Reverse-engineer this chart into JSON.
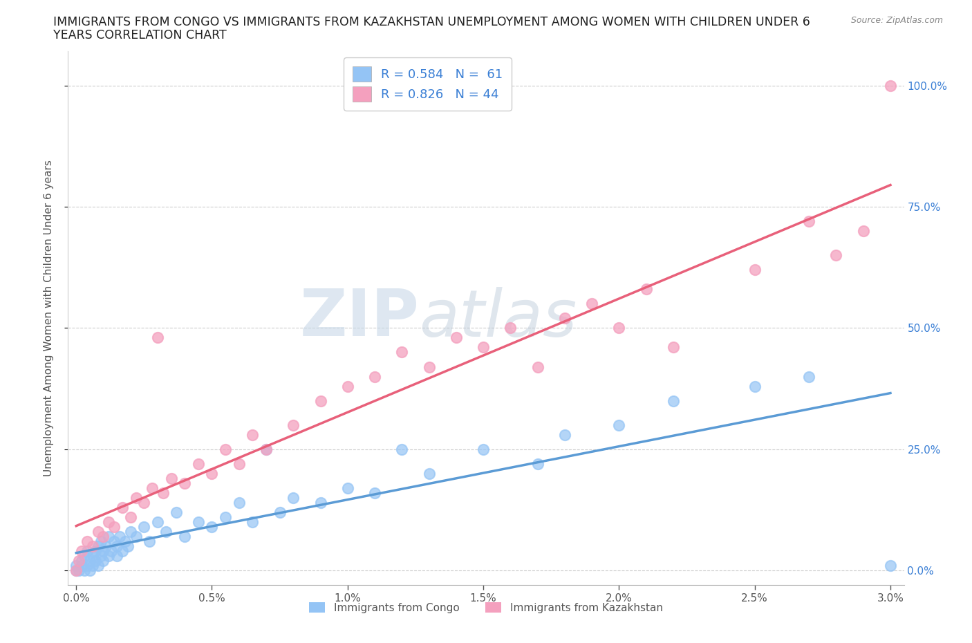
{
  "title_line1": "IMMIGRANTS FROM CONGO VS IMMIGRANTS FROM KAZAKHSTAN UNEMPLOYMENT AMONG WOMEN WITH CHILDREN UNDER 6",
  "title_line2": "YEARS CORRELATION CHART",
  "source": "Source: ZipAtlas.com",
  "ylabel": "Unemployment Among Women with Children Under 6 years",
  "legend_entry1": "R = 0.584   N =  61",
  "legend_entry2": "R = 0.826   N = 44",
  "legend_label1": "Immigrants from Congo",
  "legend_label2": "Immigrants from Kazakhstan",
  "color_congo": "#94c4f5",
  "color_kazakhstan": "#f4a0be",
  "trendline_congo_color": "#5b9bd5",
  "trendline_kazakhstan_color": "#e8607a",
  "watermark_zip": "ZIP",
  "watermark_atlas": "atlas",
  "xlim": [
    0,
    3.0
  ],
  "ylim": [
    0,
    105
  ],
  "x_ticks": [
    0.0,
    0.5,
    1.0,
    1.5,
    2.0,
    2.5,
    3.0
  ],
  "y_ticks": [
    0.0,
    25.0,
    50.0,
    75.0,
    100.0
  ],
  "congo_x": [
    0.0,
    0.0,
    0.01,
    0.02,
    0.02,
    0.03,
    0.03,
    0.04,
    0.04,
    0.05,
    0.05,
    0.06,
    0.06,
    0.07,
    0.07,
    0.08,
    0.08,
    0.09,
    0.09,
    0.1,
    0.1,
    0.11,
    0.12,
    0.12,
    0.13,
    0.14,
    0.15,
    0.15,
    0.16,
    0.17,
    0.18,
    0.19,
    0.2,
    0.22,
    0.25,
    0.27,
    0.3,
    0.33,
    0.37,
    0.4,
    0.45,
    0.5,
    0.55,
    0.6,
    0.65,
    0.7,
    0.75,
    0.8,
    0.9,
    1.0,
    1.1,
    1.2,
    1.3,
    1.5,
    1.7,
    1.8,
    2.0,
    2.2,
    2.5,
    2.7,
    3.0
  ],
  "congo_y": [
    0.0,
    1.0,
    0.0,
    2.0,
    1.0,
    0.0,
    3.0,
    1.0,
    4.0,
    2.0,
    0.0,
    3.0,
    1.0,
    4.0,
    2.0,
    5.0,
    1.0,
    3.0,
    6.0,
    4.0,
    2.0,
    5.0,
    3.0,
    7.0,
    4.0,
    6.0,
    5.0,
    3.0,
    7.0,
    4.0,
    6.0,
    5.0,
    8.0,
    7.0,
    9.0,
    6.0,
    10.0,
    8.0,
    12.0,
    7.0,
    10.0,
    9.0,
    11.0,
    14.0,
    10.0,
    25.0,
    12.0,
    15.0,
    14.0,
    17.0,
    16.0,
    25.0,
    20.0,
    25.0,
    22.0,
    28.0,
    30.0,
    35.0,
    38.0,
    40.0,
    1.0
  ],
  "kaz_x": [
    0.0,
    0.01,
    0.02,
    0.04,
    0.06,
    0.08,
    0.1,
    0.12,
    0.14,
    0.17,
    0.2,
    0.22,
    0.25,
    0.28,
    0.32,
    0.35,
    0.4,
    0.45,
    0.5,
    0.55,
    0.6,
    0.65,
    0.7,
    0.8,
    0.9,
    1.0,
    1.1,
    1.2,
    1.3,
    1.4,
    1.5,
    1.6,
    1.7,
    1.8,
    1.9,
    2.0,
    2.1,
    2.2,
    2.5,
    2.7,
    2.8,
    2.9,
    3.0,
    0.3
  ],
  "kaz_y": [
    0.0,
    2.0,
    4.0,
    6.0,
    5.0,
    8.0,
    7.0,
    10.0,
    9.0,
    13.0,
    11.0,
    15.0,
    14.0,
    17.0,
    16.0,
    19.0,
    18.0,
    22.0,
    20.0,
    25.0,
    22.0,
    28.0,
    25.0,
    30.0,
    35.0,
    38.0,
    40.0,
    45.0,
    42.0,
    48.0,
    46.0,
    50.0,
    42.0,
    52.0,
    55.0,
    50.0,
    58.0,
    46.0,
    62.0,
    72.0,
    65.0,
    70.0,
    100.0,
    48.0
  ],
  "congo_trend_x0": 0.0,
  "congo_trend_x1": 3.0,
  "congo_trend_y0": 2.0,
  "congo_trend_y1": 35.0,
  "kaz_trend_x0": 0.0,
  "kaz_trend_x1": 3.0,
  "kaz_trend_y0": 0.0,
  "kaz_trend_y1": 75.0
}
